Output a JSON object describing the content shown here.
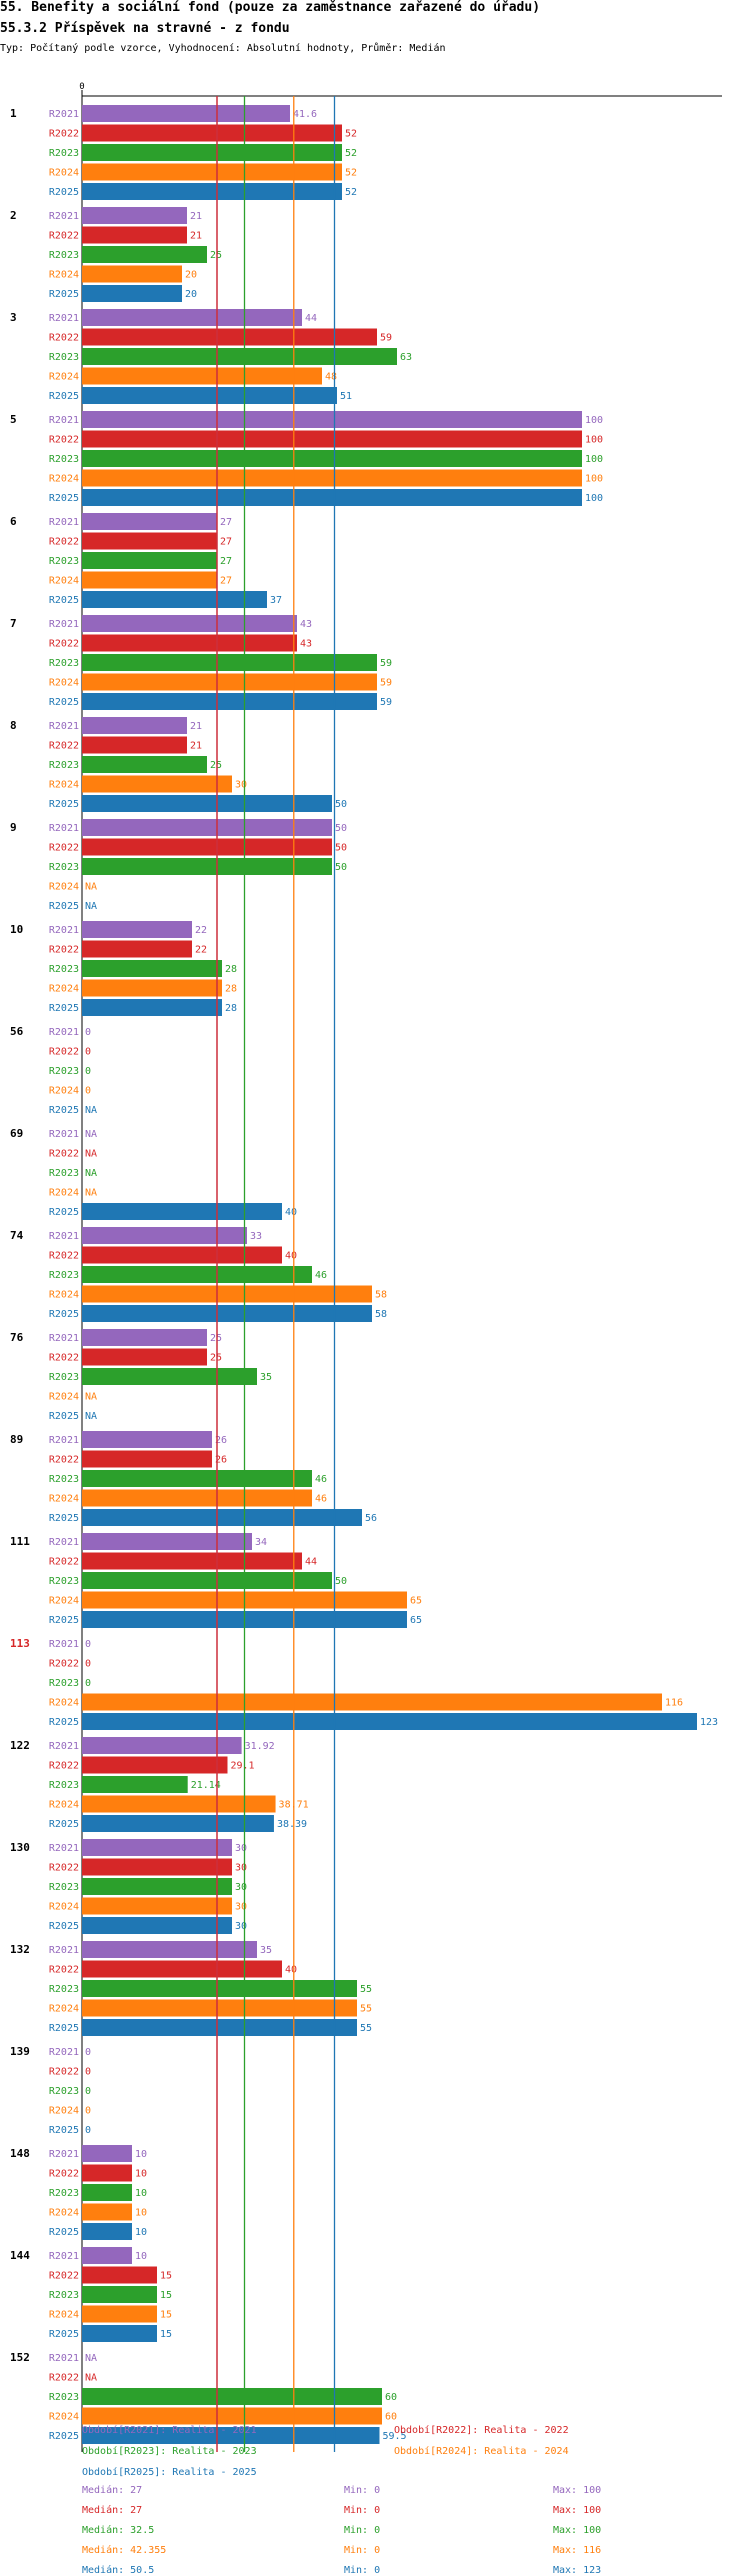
{
  "header": {
    "title": "55. Benefity a sociální fond (pouze za zaměstnance zařazené do úřadu)",
    "subtitle_title": "55.3.2 Příspěvek na stravné - z fondu",
    "description": "Typ: Počítaný podle vzorce, Vyhodnocení: Absolutní hodnoty, Průměr: Medián"
  },
  "chart_data": {
    "type": "bar",
    "orientation": "horizontal",
    "axis_zero_label": "0",
    "xlim": [
      0,
      123
    ],
    "series_names": [
      "R2021",
      "R2022",
      "R2023",
      "R2024",
      "R2025"
    ],
    "colors": {
      "R2021": "#9467bd",
      "R2022": "#d62728",
      "R2023": "#2ca02c",
      "R2024": "#ff7f0e",
      "R2025": "#1f77b4"
    },
    "highlight_color": "#d62728",
    "groups": [
      {
        "label": "1",
        "highlight": false,
        "values": [
          41.6,
          52,
          52,
          52,
          52
        ],
        "labels": [
          "41.6",
          "52",
          "52",
          "52",
          "52"
        ]
      },
      {
        "label": "2",
        "highlight": false,
        "values": [
          21,
          21,
          25,
          20,
          20
        ],
        "labels": [
          "21",
          "21",
          "25",
          "20",
          "20"
        ]
      },
      {
        "label": "3",
        "highlight": false,
        "values": [
          44,
          59,
          63,
          48,
          51
        ],
        "labels": [
          "44",
          "59",
          "63",
          "48",
          "51"
        ]
      },
      {
        "label": "5",
        "highlight": false,
        "values": [
          100,
          100,
          100,
          100,
          100
        ],
        "labels": [
          "100",
          "100",
          "100",
          "100",
          "100"
        ]
      },
      {
        "label": "6",
        "highlight": false,
        "values": [
          27,
          27,
          27,
          27,
          37
        ],
        "labels": [
          "27",
          "27",
          "27",
          "27",
          "37"
        ]
      },
      {
        "label": "7",
        "highlight": false,
        "values": [
          43,
          43,
          59,
          59,
          59
        ],
        "labels": [
          "43",
          "43",
          "59",
          "59",
          "59"
        ]
      },
      {
        "label": "8",
        "highlight": false,
        "values": [
          21,
          21,
          25,
          30,
          50
        ],
        "labels": [
          "21",
          "21",
          "25",
          "30",
          "50"
        ]
      },
      {
        "label": "9",
        "highlight": false,
        "values": [
          50,
          50,
          50,
          null,
          null
        ],
        "labels": [
          "50",
          "50",
          "50",
          "NA",
          "NA"
        ]
      },
      {
        "label": "10",
        "highlight": false,
        "values": [
          22,
          22,
          28,
          28,
          28
        ],
        "labels": [
          "22",
          "22",
          "28",
          "28",
          "28"
        ]
      },
      {
        "label": "56",
        "highlight": false,
        "values": [
          0,
          0,
          0,
          0,
          null
        ],
        "labels": [
          "0",
          "0",
          "0",
          "0",
          "NA"
        ]
      },
      {
        "label": "69",
        "highlight": false,
        "values": [
          null,
          null,
          null,
          null,
          40
        ],
        "labels": [
          "NA",
          "NA",
          "NA",
          "NA",
          "40"
        ]
      },
      {
        "label": "74",
        "highlight": false,
        "values": [
          33,
          40,
          46,
          58,
          58
        ],
        "labels": [
          "33",
          "40",
          "46",
          "58",
          "58"
        ]
      },
      {
        "label": "76",
        "highlight": false,
        "values": [
          25,
          25,
          35,
          null,
          null
        ],
        "labels": [
          "25",
          "25",
          "35",
          "NA",
          "NA"
        ]
      },
      {
        "label": "89",
        "highlight": false,
        "values": [
          26,
          26,
          46,
          46,
          56
        ],
        "labels": [
          "26",
          "26",
          "46",
          "46",
          "56"
        ]
      },
      {
        "label": "111",
        "highlight": false,
        "values": [
          34,
          44,
          50,
          65,
          65
        ],
        "labels": [
          "34",
          "44",
          "50",
          "65",
          "65"
        ]
      },
      {
        "label": "113",
        "highlight": true,
        "values": [
          0,
          0,
          0,
          116,
          123
        ],
        "labels": [
          "0",
          "0",
          "0",
          "116",
          "123"
        ]
      },
      {
        "label": "122",
        "highlight": false,
        "values": [
          31.92,
          29.1,
          21.14,
          38.71,
          38.39
        ],
        "labels": [
          "31.92",
          "29.1",
          "21.14",
          "38.71",
          "38.39"
        ]
      },
      {
        "label": "130",
        "highlight": false,
        "values": [
          30,
          30,
          30,
          30,
          30
        ],
        "labels": [
          "30",
          "30",
          "30",
          "30",
          "30"
        ]
      },
      {
        "label": "132",
        "highlight": false,
        "values": [
          35,
          40,
          55,
          55,
          55
        ],
        "labels": [
          "35",
          "40",
          "55",
          "55",
          "55"
        ]
      },
      {
        "label": "139",
        "highlight": false,
        "values": [
          0,
          0,
          0,
          0,
          0
        ],
        "labels": [
          "0",
          "0",
          "0",
          "0",
          "0"
        ]
      },
      {
        "label": "148",
        "highlight": false,
        "values": [
          10,
          10,
          10,
          10,
          10
        ],
        "labels": [
          "10",
          "10",
          "10",
          "10",
          "10"
        ]
      },
      {
        "label": "144",
        "highlight": false,
        "values": [
          10,
          15,
          15,
          15,
          15
        ],
        "labels": [
          "10",
          "15",
          "15",
          "15",
          "15"
        ]
      },
      {
        "label": "152",
        "highlight": false,
        "values": [
          null,
          null,
          60,
          60,
          59.5
        ],
        "labels": [
          "NA",
          "NA",
          "60",
          "60",
          "59.5"
        ]
      }
    ],
    "median_lines": [
      {
        "series": "R2021",
        "value": 27
      },
      {
        "series": "R2022",
        "value": 27
      },
      {
        "series": "R2023",
        "value": 32.5
      },
      {
        "series": "R2024",
        "value": 42.355
      },
      {
        "series": "R2025",
        "value": 50.5
      }
    ],
    "legend": [
      {
        "series": "R2021",
        "text": "Období[R2021]: Realita - 2021"
      },
      {
        "series": "R2022",
        "text": "Období[R2022]: Realita - 2022"
      },
      {
        "series": "R2023",
        "text": "Období[R2023]: Realita - 2023"
      },
      {
        "series": "R2024",
        "text": "Období[R2024]: Realita - 2024"
      },
      {
        "series": "R2025",
        "text": "Období[R2025]: Realita - 2025"
      }
    ],
    "stats": [
      {
        "series": "R2021",
        "median": "Medián: 27",
        "min": "Min: 0",
        "max": "Max: 100"
      },
      {
        "series": "R2022",
        "median": "Medián: 27",
        "min": "Min: 0",
        "max": "Max: 100"
      },
      {
        "series": "R2023",
        "median": "Medián: 32.5",
        "min": "Min: 0",
        "max": "Max: 100"
      },
      {
        "series": "R2024",
        "median": "Medián: 42.355",
        "min": "Min: 0",
        "max": "Max: 116"
      },
      {
        "series": "R2025",
        "median": "Medián: 50.5",
        "min": "Min: 0",
        "max": "Max: 123"
      }
    ]
  }
}
